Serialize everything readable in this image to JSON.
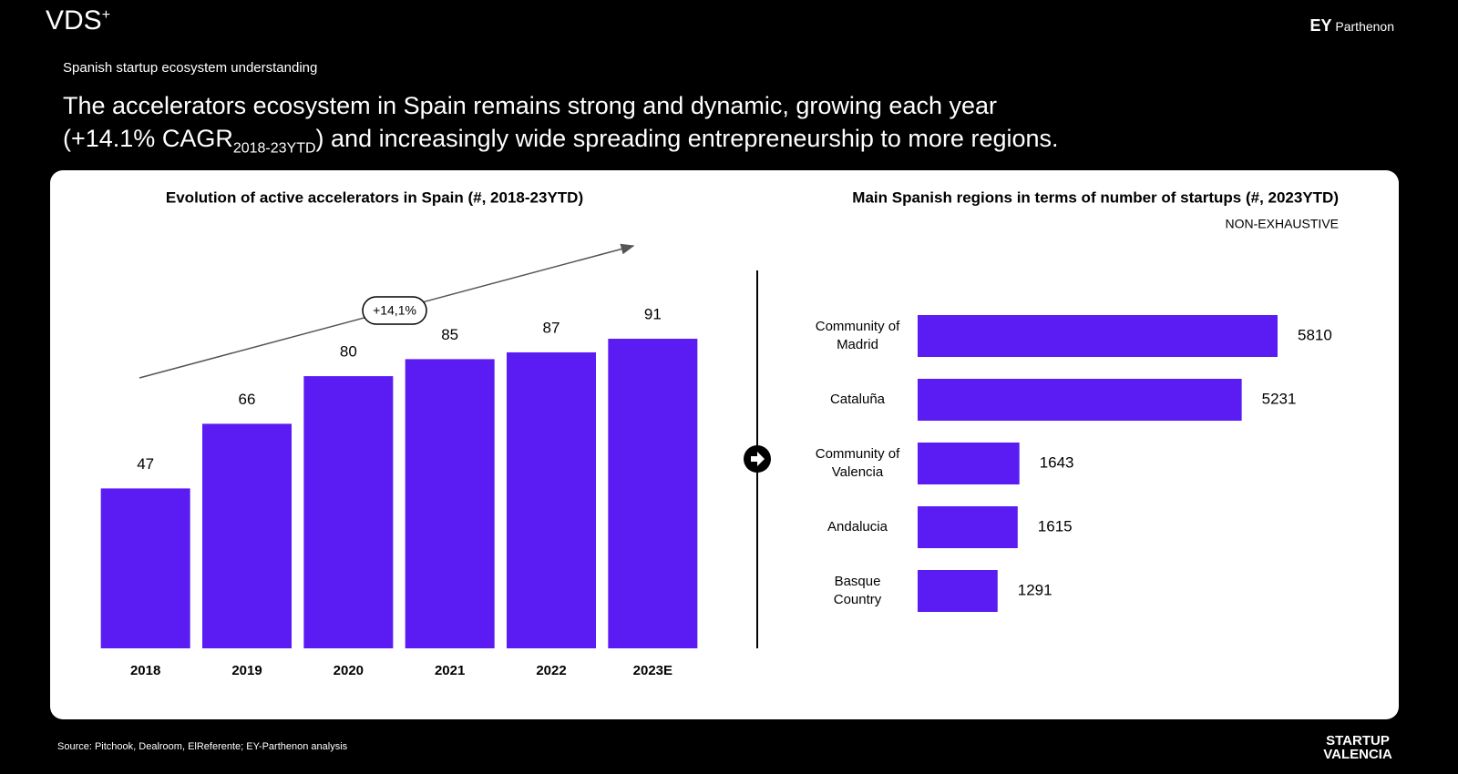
{
  "header": {
    "logo": "VDS",
    "logo_mark": "+",
    "brand_bold": "EY",
    "brand": "Parthenon",
    "kicker": "Spanish startup ecosystem understanding",
    "headline_line1": "The accelerators ecosystem in Spain remains strong and dynamic, growing each year",
    "headline_open": "(+14.1% CAGR",
    "headline_sub": "2018-23YTD",
    "headline_close": ") and increasingly wide spreading entrepreneurship to more regions."
  },
  "chart_data": [
    {
      "type": "bar",
      "title": "Evolution of active accelerators in Spain (#, 2018-23YTD)",
      "categories": [
        "2018",
        "2019",
        "2020",
        "2021",
        "2022",
        "2023E"
      ],
      "values": [
        47,
        66,
        80,
        85,
        87,
        91
      ],
      "color": "#5a1cf2",
      "annotation": "+14,1%"
    },
    {
      "type": "barh",
      "title": "Main Spanish regions in terms of number of startups  (#, 2023YTD)",
      "subtitle": "NON-EXHAUSTIVE",
      "categories": [
        "Community of Madrid",
        "Cataluña",
        "Community of Valencia",
        "Andalucia",
        "Basque Country"
      ],
      "values": [
        5810,
        5231,
        1643,
        1615,
        1291
      ],
      "color": "#5a1cf2"
    }
  ],
  "footer": {
    "source": "Source: Pitchook, Dealroom, ElReferente; EY-Parthenon analysis",
    "logo": "STARTUP VALENCIA"
  }
}
